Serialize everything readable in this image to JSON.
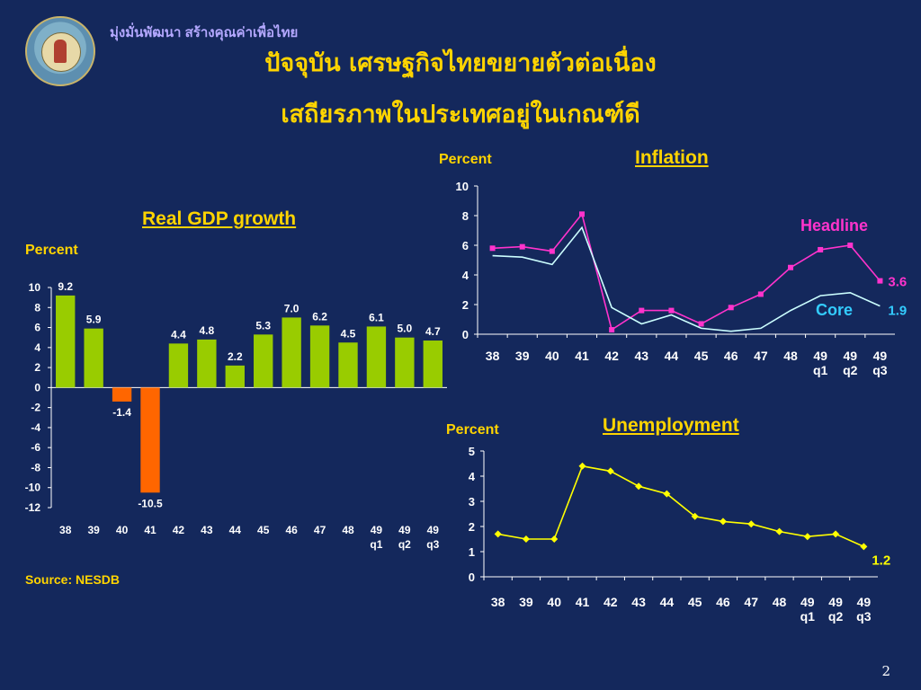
{
  "slide": {
    "slogan": "มุ่งมั่นพัฒนา สร้างคุณค่าเพื่อไทย",
    "title_line1": "ปัจจุบัน เศรษฐกิจไทยขยายตัวต่อเนื่อง",
    "title_line2": "เสถียรภาพในประเทศอยู่ในเกณฑ์ดี",
    "source": "Source: NESDB",
    "page_number": "2"
  },
  "colors": {
    "background": "#14285c",
    "title": "#ffd400",
    "axis": "#ffffff",
    "bar_positive": "#99cc00",
    "bar_negative": "#ff6600",
    "headline": "#ff33cc",
    "core": "#ccffff",
    "core_label": "#33ccff",
    "unemployment": "#ffff00"
  },
  "chart_data": [
    {
      "id": "gdp",
      "type": "bar",
      "title": "Real GDP growth",
      "ylabel": "Percent",
      "categories": [
        "38",
        "39",
        "40",
        "41",
        "42",
        "43",
        "44",
        "45",
        "46",
        "47",
        "48",
        "49\nq1",
        "49\nq2",
        "49\nq3"
      ],
      "values": [
        9.2,
        5.9,
        -1.4,
        -10.5,
        4.4,
        4.8,
        2.2,
        5.3,
        7.0,
        6.2,
        4.5,
        6.1,
        5.0,
        4.7
      ],
      "value_labels": [
        "9.2",
        "5.9",
        "-1.4",
        "-10.5",
        "4.4",
        "4.8",
        "2.2",
        "5.3",
        "7.0",
        "6.2",
        "4.5",
        "6.1",
        "5.0",
        "4.7"
      ],
      "ylim": [
        -12,
        10
      ],
      "yticks": [
        10,
        8,
        6,
        4,
        2,
        0,
        -2,
        -4,
        -6,
        -8,
        -10,
        -12
      ]
    },
    {
      "id": "inflation",
      "type": "line",
      "title": "Inflation",
      "ylabel": "Percent",
      "categories": [
        "38",
        "39",
        "40",
        "41",
        "42",
        "43",
        "44",
        "45",
        "46",
        "47",
        "48",
        "49\nq1",
        "49\nq2",
        "49\nq3"
      ],
      "series": [
        {
          "name": "Headline",
          "values": [
            5.8,
            5.9,
            5.6,
            8.1,
            0.3,
            1.6,
            1.6,
            0.7,
            1.8,
            2.7,
            4.5,
            5.7,
            6.0,
            3.6
          ],
          "end_label": "3.6"
        },
        {
          "name": "Core",
          "values": [
            5.3,
            5.2,
            4.7,
            7.2,
            1.8,
            0.7,
            1.3,
            0.4,
            0.2,
            0.4,
            1.6,
            2.6,
            2.8,
            1.9
          ],
          "end_label": "1.9"
        }
      ],
      "ylim": [
        0,
        10
      ],
      "yticks": [
        10,
        8,
        6,
        4,
        2,
        0
      ]
    },
    {
      "id": "unemployment",
      "type": "line",
      "title": "Unemployment",
      "ylabel": "Percent",
      "categories": [
        "38",
        "39",
        "40",
        "41",
        "42",
        "43",
        "44",
        "45",
        "46",
        "47",
        "48",
        "49\nq1",
        "49\nq2",
        "49\nq3"
      ],
      "series": [
        {
          "values": [
            1.7,
            1.5,
            1.5,
            4.4,
            4.2,
            3.6,
            3.3,
            2.4,
            2.2,
            2.1,
            1.8,
            1.6,
            1.7,
            1.2
          ],
          "end_label": "1.2"
        }
      ],
      "ylim": [
        0,
        5
      ],
      "yticks": [
        5,
        4,
        3,
        2,
        1,
        0
      ]
    }
  ]
}
